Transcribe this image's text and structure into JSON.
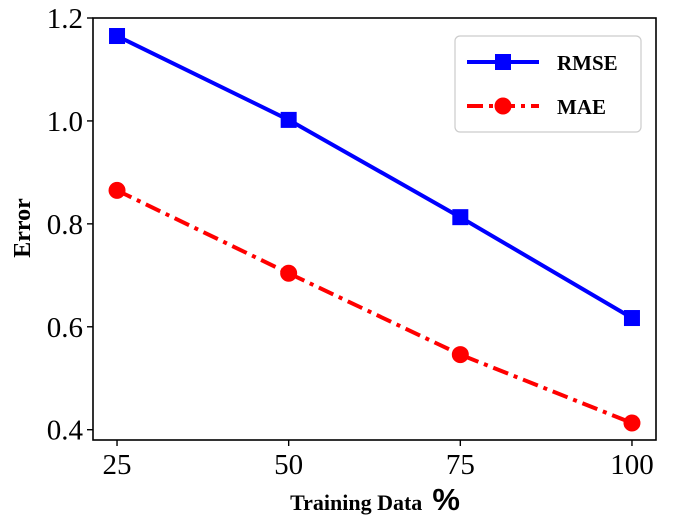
{
  "chart_data": {
    "type": "line",
    "x": [
      25,
      50,
      75,
      100
    ],
    "xticks": [
      "25",
      "50",
      "75",
      "100"
    ],
    "yticks": [
      "0.4",
      "0.6",
      "0.8",
      "1.0",
      "1.2"
    ],
    "ylim": [
      0.38,
      1.2
    ],
    "xlim": [
      21.5,
      103.5
    ],
    "xlabel": "Training Data",
    "xlabel_suffix": "%",
    "ylabel": "Error",
    "legend_position": "top-right",
    "grid": false,
    "series": [
      {
        "name": "RMSE",
        "values": [
          1.165,
          1.002,
          0.813,
          0.617
        ],
        "color": "#0000ff",
        "marker": "square",
        "linestyle": "solid"
      },
      {
        "name": "MAE",
        "values": [
          0.865,
          0.704,
          0.546,
          0.413
        ],
        "color": "#ff0000",
        "marker": "circle",
        "linestyle": "dashdot"
      }
    ]
  }
}
